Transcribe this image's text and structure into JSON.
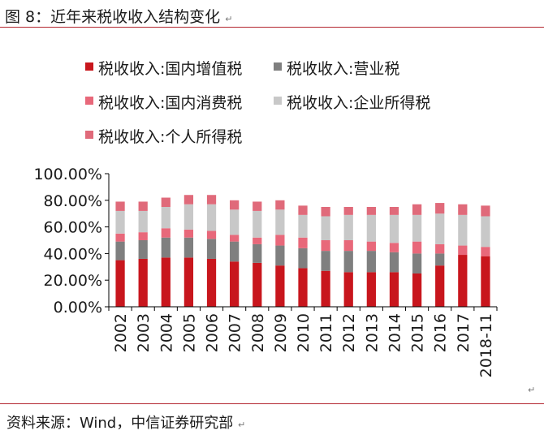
{
  "figure": {
    "title": "图 8：近年来税收收入结构变化",
    "source": "资料来源：Wind，中信证券研究部",
    "para_mark": "↵"
  },
  "chart_data": {
    "type": "bar",
    "stacked": true,
    "ylim": [
      0,
      100
    ],
    "yticks": [
      "100.00%",
      "80.00%",
      "60.00%",
      "40.00%",
      "20.00%",
      "0.00%"
    ],
    "ytick_values": [
      100,
      80,
      60,
      40,
      20,
      0
    ],
    "categories": [
      "2002",
      "2003",
      "2004",
      "2005",
      "2006",
      "2007",
      "2008",
      "2009",
      "2010",
      "2011",
      "2012",
      "2013",
      "2014",
      "2015",
      "2016",
      "2017",
      "2018-11"
    ],
    "legend_position": "top",
    "series": [
      {
        "name": "税收收入:国内增值税",
        "color": "#c8161d",
        "values": [
          35,
          36,
          37,
          37,
          36,
          34,
          33,
          31,
          29,
          27,
          26,
          26,
          26,
          25,
          31,
          39,
          38
        ]
      },
      {
        "name": "税收收入:营业税",
        "color": "#7f7f7f",
        "values": [
          14,
          14,
          15,
          15,
          15,
          15,
          14,
          15,
          15,
          15,
          16,
          16,
          15,
          15,
          9,
          0,
          0
        ]
      },
      {
        "name": "税收收入:国内消费税",
        "color": "#e8687a",
        "values": [
          6,
          6,
          7,
          6,
          6,
          5,
          5,
          8,
          8,
          8,
          8,
          7,
          7,
          9,
          7,
          7,
          7
        ]
      },
      {
        "name": "税收收入:企业所得税",
        "color": "#c8c8c8",
        "values": [
          17,
          16,
          16,
          19,
          20,
          19,
          20,
          19,
          17,
          18,
          19,
          20,
          21,
          20,
          23,
          23,
          23
        ]
      },
      {
        "name": "税收收入:个人所得税",
        "color": "#e06a7a",
        "values": [
          7,
          7,
          7,
          7,
          7,
          7,
          7,
          7,
          7,
          7,
          6,
          6,
          6,
          8,
          8,
          8,
          8
        ]
      }
    ]
  }
}
